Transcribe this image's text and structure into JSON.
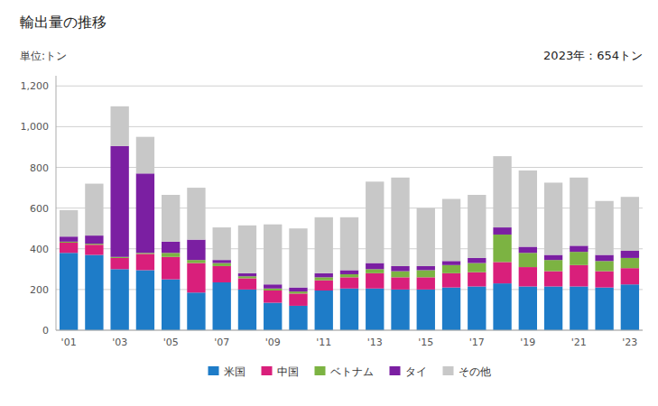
{
  "chart_data": {
    "type": "bar",
    "stacked": true,
    "title": "輸出量の推移",
    "y_label": "単位:トン",
    "annotations": [
      "2023年：654トン"
    ],
    "categories": [
      "'01",
      null,
      "'03",
      null,
      "'05",
      null,
      "'07",
      null,
      "'09",
      null,
      "'11",
      null,
      "'13",
      null,
      "'15",
      null,
      "'17",
      null,
      "'19",
      null,
      "'21",
      null,
      "'23"
    ],
    "series": [
      {
        "name": "米国",
        "color": "#1E7CC8",
        "values": [
          380,
          370,
          300,
          295,
          250,
          185,
          235,
          200,
          135,
          120,
          195,
          205,
          205,
          200,
          200,
          210,
          215,
          230,
          215,
          215,
          215,
          210,
          225
        ]
      },
      {
        "name": "中国",
        "color": "#D91F7B",
        "values": [
          50,
          50,
          55,
          80,
          110,
          145,
          80,
          55,
          60,
          60,
          50,
          55,
          75,
          60,
          60,
          70,
          70,
          105,
          95,
          75,
          105,
          80,
          80
        ]
      },
      {
        "name": "ベトナム",
        "color": "#7CB342",
        "values": [
          5,
          5,
          5,
          5,
          20,
          15,
          15,
          10,
          10,
          10,
          15,
          15,
          20,
          30,
          35,
          40,
          45,
          135,
          70,
          55,
          65,
          50,
          50
        ]
      },
      {
        "name": "タイ",
        "color": "#7B1FA2",
        "values": [
          25,
          40,
          545,
          390,
          55,
          100,
          15,
          15,
          20,
          20,
          20,
          20,
          30,
          25,
          20,
          20,
          25,
          35,
          30,
          25,
          30,
          30,
          35
        ]
      },
      {
        "name": "その他",
        "color": "#C8C8C8",
        "values": [
          130,
          255,
          195,
          180,
          230,
          255,
          160,
          235,
          295,
          290,
          275,
          260,
          400,
          435,
          285,
          305,
          310,
          350,
          375,
          355,
          335,
          265,
          265
        ]
      }
    ],
    "ylim": [
      0,
      1250
    ],
    "yticks": [
      0,
      200,
      400,
      600,
      800,
      {
        "value": 1000,
        "label": "1,000"
      },
      {
        "value": 1200,
        "label": "1,200"
      }
    ],
    "grid": true,
    "legend": "bottom"
  }
}
